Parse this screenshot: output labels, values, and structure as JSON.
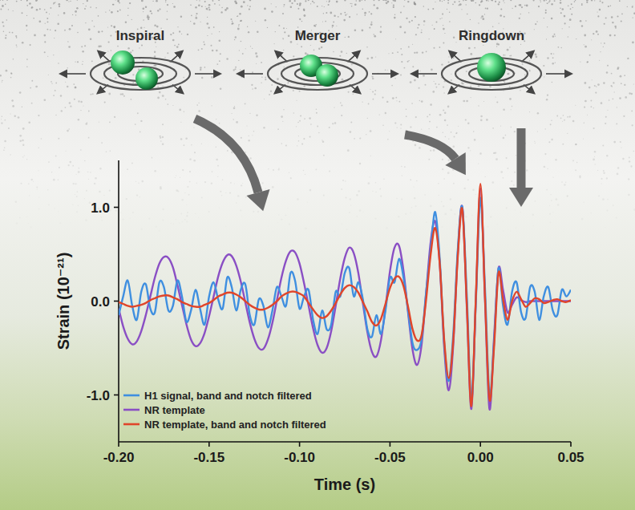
{
  "chart_data": {
    "type": "line",
    "annotations": [
      "Inspiral",
      "Merger",
      "Ringdown"
    ],
    "x_label": "Time (s)",
    "y_label": "Strain (10⁻²¹)",
    "xlim": [
      -0.2,
      0.05
    ],
    "ylim": [
      -1.5,
      1.5
    ],
    "xticks": [
      {
        "value": -0.2,
        "label": "-0.20"
      },
      -0.15,
      {
        "value": -0.1,
        "label": "-0.10"
      },
      -0.05,
      {
        "value": 0,
        "label": "0.00"
      },
      0.05
    ],
    "yticks": [
      {
        "value": -1,
        "label": "-1.0"
      },
      {
        "value": 0,
        "label": "0.0"
      },
      {
        "value": 1,
        "label": "1.0"
      }
    ],
    "grid": false,
    "legend": "lower left",
    "x": [
      -0.2,
      -0.1975,
      -0.195,
      -0.1925,
      -0.19,
      -0.1875,
      -0.185,
      -0.1825,
      -0.18,
      -0.1775,
      -0.175,
      -0.1725,
      -0.17,
      -0.1675,
      -0.165,
      -0.1625,
      -0.16,
      -0.1575,
      -0.155,
      -0.1525,
      -0.15,
      -0.1475,
      -0.145,
      -0.1425,
      -0.14,
      -0.1375,
      -0.135,
      -0.1325,
      -0.13,
      -0.1275,
      -0.125,
      -0.1225,
      -0.12,
      -0.1175,
      -0.115,
      -0.1125,
      -0.11,
      -0.1075,
      -0.105,
      -0.1025,
      -0.1,
      -0.0975,
      -0.095,
      -0.0925,
      -0.09,
      -0.0875,
      -0.085,
      -0.0825,
      -0.08,
      -0.0775,
      -0.075,
      -0.0725,
      -0.07,
      -0.0675,
      -0.065,
      -0.0625,
      -0.06,
      -0.0575,
      -0.055,
      -0.0525,
      -0.05,
      -0.0475,
      -0.045,
      -0.0425,
      -0.04,
      -0.0375,
      -0.035,
      -0.0325,
      -0.03,
      -0.0275,
      -0.025,
      -0.0225,
      -0.02,
      -0.0175,
      -0.015,
      -0.0125,
      -0.01,
      -0.0075,
      -0.005,
      -0.0025,
      0,
      0.0025,
      0.005,
      0.0075,
      0.01,
      0.0125,
      0.015,
      0.0175,
      0.02,
      0.0225,
      0.025,
      0.0275,
      0.03,
      0.0325,
      0.035,
      0.0375,
      0.04,
      0.0425,
      0.045,
      0.0475,
      0.05
    ],
    "series": [
      {
        "name": "H1 signal, band and notch filtered",
        "color": "#3f8fe0",
        "values": [
          -0.15,
          0.05,
          0.22,
          -0.05,
          -0.2,
          0.1,
          0.18,
          -0.08,
          -0.12,
          0.2,
          0.15,
          -0.1,
          -0.05,
          0.22,
          0.05,
          -0.22,
          -0.1,
          0.12,
          -0.08,
          -0.25,
          0.05,
          0.2,
          0.02,
          -0.08,
          0.25,
          0.15,
          -0.1,
          0.12,
          0.18,
          -0.15,
          -0.25,
          0.02,
          -0.05,
          -0.28,
          -0.1,
          0.15,
          0.05,
          -0.05,
          0.3,
          0.22,
          -0.08,
          0.05,
          0.12,
          -0.2,
          -0.35,
          -0.1,
          -0.3,
          -0.25,
          0.1,
          0.05,
          0.3,
          0.35,
          0.05,
          0.2,
          0.02,
          -0.3,
          -0.38,
          -0.15,
          -0.35,
          -0.1,
          0.25,
          0.2,
          0.45,
          0.25,
          -0.1,
          -0.45,
          -0.52,
          -0.4,
          0.1,
          0.55,
          0.95,
          0.45,
          -0.45,
          -0.85,
          -0.35,
          0.55,
          1.0,
          0.05,
          -1.05,
          0.0,
          1.1,
          0.15,
          -1.0,
          -0.45,
          0.35,
          -0.05,
          -0.25,
          0.1,
          0.2,
          -0.12,
          -0.18,
          0.15,
          0.1,
          -0.2,
          0.05,
          0.15,
          -0.1,
          -0.15,
          0.12,
          0.05,
          0.12
        ]
      },
      {
        "name": "NR template",
        "color": "#8a4fc4",
        "values": [
          -0.08,
          -0.27,
          -0.4,
          -0.46,
          -0.43,
          -0.32,
          -0.15,
          0.05,
          0.25,
          0.4,
          0.47,
          0.46,
          0.36,
          0.17,
          -0.04,
          -0.25,
          -0.41,
          -0.48,
          -0.45,
          -0.34,
          -0.16,
          0.05,
          0.26,
          0.41,
          0.49,
          0.48,
          0.38,
          0.21,
          -0.01,
          -0.23,
          -0.4,
          -0.5,
          -0.51,
          -0.41,
          -0.23,
          0.01,
          0.25,
          0.43,
          0.53,
          0.52,
          0.4,
          0.19,
          -0.05,
          -0.29,
          -0.47,
          -0.55,
          -0.5,
          -0.32,
          -0.05,
          0.24,
          0.46,
          0.57,
          0.51,
          0.3,
          -0.02,
          -0.33,
          -0.54,
          -0.59,
          -0.42,
          -0.07,
          0.32,
          0.57,
          0.59,
          0.32,
          -0.12,
          -0.52,
          -0.68,
          -0.46,
          0.09,
          0.63,
          0.85,
          0.4,
          -0.5,
          -0.95,
          -0.46,
          0.51,
          1.0,
          -0.08,
          -1.15,
          0.03,
          1.2,
          0.03,
          -1.15,
          -0.4,
          0.35,
          0.12,
          -0.12,
          -0.04,
          0.04,
          0.01,
          -0.01,
          0,
          0,
          0,
          0,
          0,
          0,
          0,
          0,
          0,
          0
        ]
      },
      {
        "name": "NR template, band and notch filtered",
        "color": "#e0452a",
        "values": [
          -0.01,
          -0.03,
          -0.05,
          -0.06,
          -0.05,
          -0.04,
          -0.02,
          0.01,
          0.03,
          0.05,
          0.06,
          0.06,
          0.04,
          0.02,
          -0.01,
          -0.03,
          -0.05,
          -0.06,
          -0.06,
          -0.04,
          -0.02,
          0.01,
          0.05,
          0.07,
          0.09,
          0.09,
          0.07,
          0.04,
          0.0,
          -0.04,
          -0.07,
          -0.09,
          -0.09,
          -0.07,
          -0.04,
          0.0,
          0.05,
          0.08,
          0.1,
          0.1,
          0.08,
          0.05,
          -0.02,
          -0.09,
          -0.15,
          -0.18,
          -0.16,
          -0.1,
          -0.02,
          0.07,
          0.14,
          0.17,
          0.15,
          0.09,
          -0.01,
          -0.11,
          -0.22,
          -0.26,
          -0.19,
          -0.03,
          0.14,
          0.24,
          0.26,
          0.16,
          -0.06,
          -0.3,
          -0.42,
          -0.36,
          0.02,
          0.5,
          0.78,
          0.4,
          -0.42,
          -0.82,
          -0.42,
          0.48,
          0.98,
          -0.05,
          -1.12,
          0.05,
          1.25,
          0.05,
          -1.05,
          -0.5,
          0.3,
          0.02,
          -0.2,
          0.0,
          0.1,
          0.02,
          -0.06,
          -0.02,
          0.03,
          0.02,
          -0.02,
          -0.01,
          0.01,
          0.02,
          0.0,
          -0.01,
          0.01
        ]
      }
    ]
  }
}
